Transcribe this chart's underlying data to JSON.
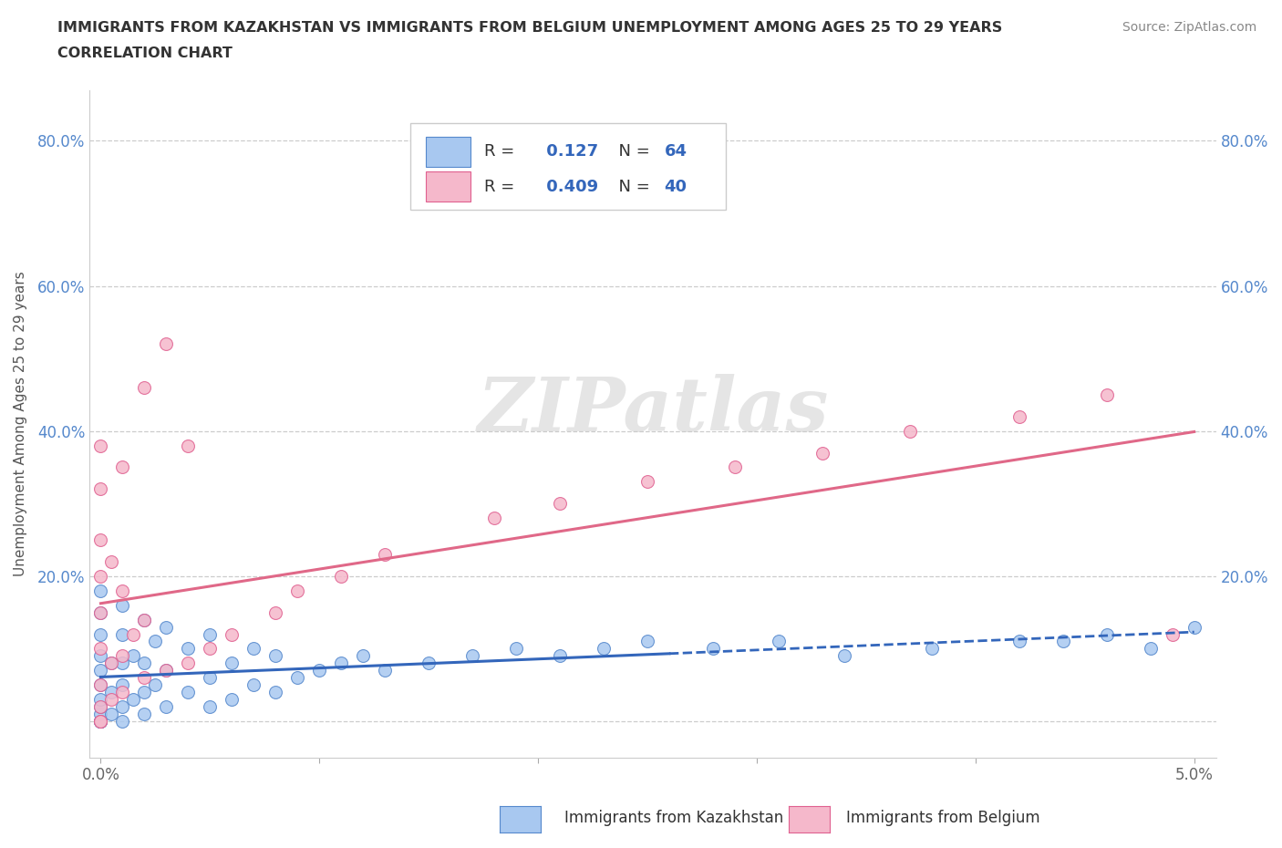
{
  "title_line1": "IMMIGRANTS FROM KAZAKHSTAN VS IMMIGRANTS FROM BELGIUM UNEMPLOYMENT AMONG AGES 25 TO 29 YEARS",
  "title_line2": "CORRELATION CHART",
  "source": "Source: ZipAtlas.com",
  "ylabel": "Unemployment Among Ages 25 to 29 years",
  "xlim": [
    -0.0005,
    0.051
  ],
  "ylim": [
    -0.05,
    0.87
  ],
  "kazakhstan_color": "#a8c8f0",
  "kazakhstan_edge_color": "#5588cc",
  "belgium_color": "#f5b8cb",
  "belgium_edge_color": "#e06090",
  "kazakhstan_line_color": "#3366bb",
  "belgium_line_color": "#e06888",
  "background_color": "#ffffff",
  "grid_color": "#cccccc",
  "watermark_text": "ZIPatlas",
  "R_kazakhstan": 0.127,
  "N_kazakhstan": 64,
  "R_belgium": 0.409,
  "N_belgium": 40,
  "kazakhstan_x": [
    0.0,
    0.0,
    0.0,
    0.0,
    0.0,
    0.0,
    0.0,
    0.0,
    0.0,
    0.0,
    0.0,
    0.0,
    0.0,
    0.0005,
    0.0005,
    0.0005,
    0.001,
    0.001,
    0.001,
    0.001,
    0.001,
    0.001,
    0.0015,
    0.0015,
    0.002,
    0.002,
    0.002,
    0.002,
    0.0025,
    0.0025,
    0.003,
    0.003,
    0.003,
    0.004,
    0.004,
    0.005,
    0.005,
    0.005,
    0.006,
    0.006,
    0.007,
    0.007,
    0.008,
    0.008,
    0.009,
    0.01,
    0.011,
    0.012,
    0.013,
    0.015,
    0.017,
    0.019,
    0.021,
    0.023,
    0.025,
    0.028,
    0.031,
    0.034,
    0.038,
    0.042,
    0.046,
    0.05,
    0.044,
    0.048
  ],
  "kazakhstan_y": [
    0.0,
    0.0,
    0.0,
    0.0,
    0.01,
    0.02,
    0.03,
    0.05,
    0.07,
    0.09,
    0.12,
    0.15,
    0.18,
    0.01,
    0.04,
    0.08,
    0.0,
    0.02,
    0.05,
    0.08,
    0.12,
    0.16,
    0.03,
    0.09,
    0.01,
    0.04,
    0.08,
    0.14,
    0.05,
    0.11,
    0.02,
    0.07,
    0.13,
    0.04,
    0.1,
    0.02,
    0.06,
    0.12,
    0.03,
    0.08,
    0.05,
    0.1,
    0.04,
    0.09,
    0.06,
    0.07,
    0.08,
    0.09,
    0.07,
    0.08,
    0.09,
    0.1,
    0.09,
    0.1,
    0.11,
    0.1,
    0.11,
    0.09,
    0.1,
    0.11,
    0.12,
    0.13,
    0.11,
    0.1
  ],
  "belgium_x": [
    0.0,
    0.0,
    0.0,
    0.0,
    0.0,
    0.0,
    0.0,
    0.0,
    0.0,
    0.0,
    0.0005,
    0.0005,
    0.0005,
    0.001,
    0.001,
    0.001,
    0.001,
    0.0015,
    0.002,
    0.002,
    0.002,
    0.003,
    0.003,
    0.004,
    0.004,
    0.005,
    0.006,
    0.008,
    0.009,
    0.011,
    0.013,
    0.018,
    0.021,
    0.025,
    0.029,
    0.033,
    0.037,
    0.042,
    0.046,
    0.049
  ],
  "belgium_y": [
    0.0,
    0.0,
    0.02,
    0.05,
    0.1,
    0.15,
    0.2,
    0.25,
    0.32,
    0.38,
    0.03,
    0.08,
    0.22,
    0.04,
    0.09,
    0.18,
    0.35,
    0.12,
    0.06,
    0.14,
    0.46,
    0.07,
    0.52,
    0.08,
    0.38,
    0.1,
    0.12,
    0.15,
    0.18,
    0.2,
    0.23,
    0.28,
    0.3,
    0.33,
    0.35,
    0.37,
    0.4,
    0.42,
    0.45,
    0.12
  ],
  "ytick_positions": [
    0.0,
    0.2,
    0.4,
    0.6,
    0.8
  ],
  "ytick_labels": [
    "",
    "20.0%",
    "40.0%",
    "60.0%",
    "80.0%"
  ],
  "xtick_positions": [
    0.0,
    0.01,
    0.02,
    0.03,
    0.04,
    0.05
  ],
  "xtick_labels": [
    "0.0%",
    "",
    "",
    "",
    "",
    "5.0%"
  ]
}
